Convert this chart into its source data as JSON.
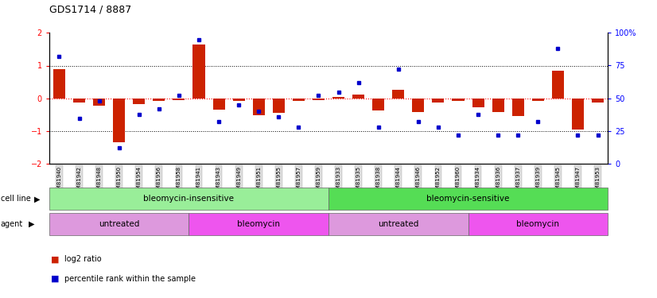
{
  "title": "GDS1714 / 8887",
  "samples": [
    "GSM81940",
    "GSM81942",
    "GSM81948",
    "GSM81950",
    "GSM81954",
    "GSM81956",
    "GSM81958",
    "GSM81941",
    "GSM81943",
    "GSM81949",
    "GSM81951",
    "GSM81955",
    "GSM81957",
    "GSM81959",
    "GSM81933",
    "GSM81935",
    "GSM81938",
    "GSM81944",
    "GSM81946",
    "GSM81952",
    "GSM81960",
    "GSM81934",
    "GSM81936",
    "GSM81937",
    "GSM81939",
    "GSM81945",
    "GSM81947",
    "GSM81953"
  ],
  "log2_ratio": [
    0.88,
    -0.12,
    -0.22,
    -1.35,
    -0.18,
    -0.08,
    -0.05,
    1.65,
    -0.35,
    -0.08,
    -0.52,
    -0.45,
    -0.08,
    -0.05,
    0.05,
    0.12,
    -0.38,
    0.25,
    -0.42,
    -0.12,
    -0.08,
    -0.28,
    -0.42,
    -0.55,
    -0.08,
    0.85,
    -0.95,
    -0.12
  ],
  "percentile_rank": [
    82,
    35,
    48,
    12,
    38,
    42,
    52,
    95,
    32,
    45,
    40,
    36,
    28,
    52,
    55,
    62,
    28,
    72,
    32,
    28,
    22,
    38,
    22,
    22,
    32,
    88,
    22,
    22
  ],
  "bar_color": "#CC2200",
  "dot_color": "#0000CC",
  "ylim_left": [
    -2,
    2
  ],
  "ylim_right": [
    0,
    100
  ],
  "yticks_left": [
    -2,
    -1,
    0,
    1,
    2
  ],
  "yticks_right": [
    0,
    25,
    50,
    75,
    100
  ],
  "cell_line_insensitive_color": "#99EE99",
  "cell_line_sensitive_color": "#55DD55",
  "agent_untreated_color": "#DD99DD",
  "agent_bleomycin_color": "#EE55EE",
  "label_color": "#333333"
}
